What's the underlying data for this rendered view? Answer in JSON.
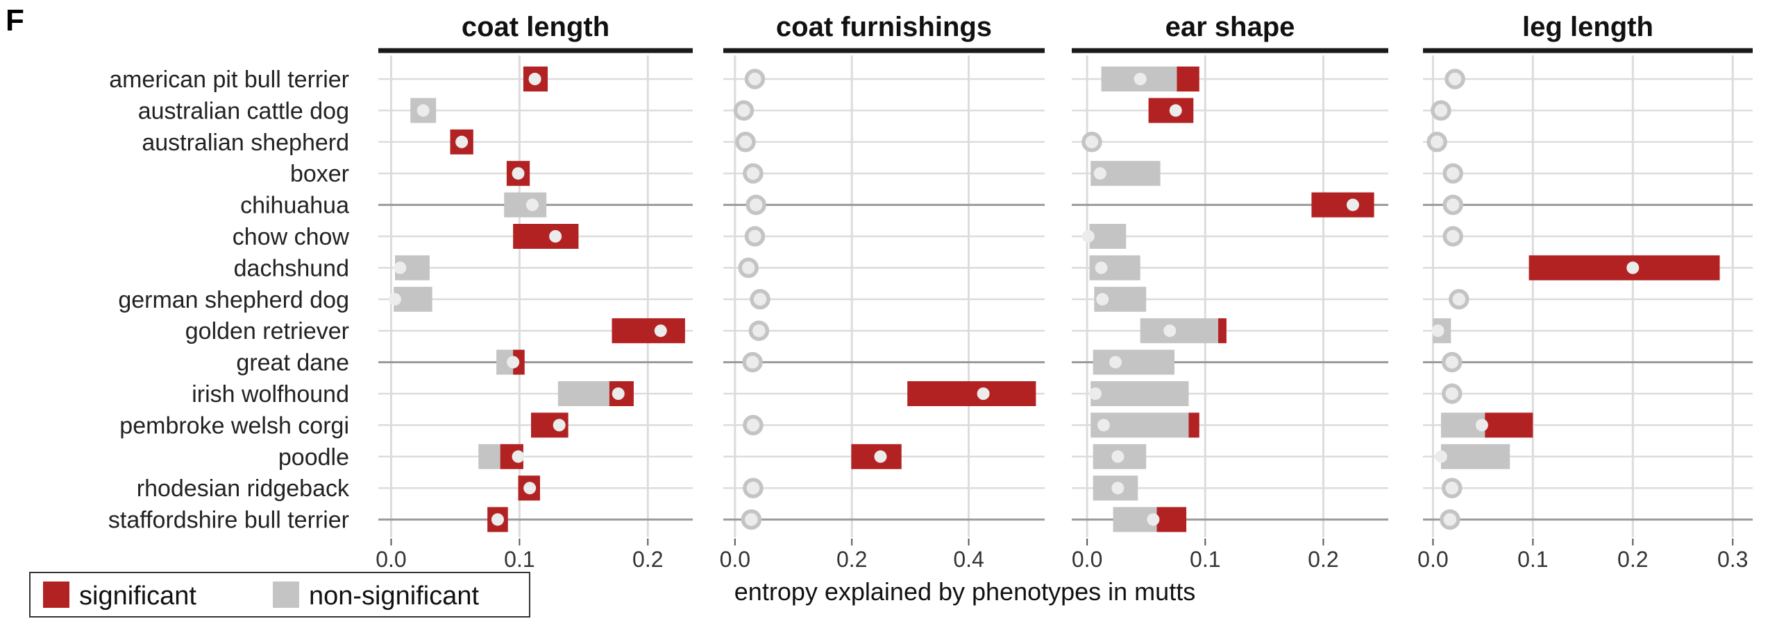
{
  "panel_label": "F",
  "colors": {
    "significant": "#b22222",
    "non_significant": "#c4c4c4",
    "point": "#ececec",
    "grid": "#dcdcdc",
    "refline": "#9a9a9a",
    "header": "#1a1a1a"
  },
  "legend": {
    "significant": "significant",
    "non_significant": "non-significant"
  },
  "chart_data": {
    "type": "interval",
    "xlabel": "entropy explained by phenotypes in mutts",
    "breeds": [
      "american pit bull terrier",
      "australian cattle dog",
      "australian shepherd",
      "boxer",
      "chihuahua",
      "chow chow",
      "dachshund",
      "german shepherd dog",
      "golden retriever",
      "great dane",
      "irish wolfhound",
      "pembroke welsh corgi",
      "poodle",
      "rhodesian ridgeback",
      "staffordshire bull terrier"
    ],
    "facets": [
      {
        "title": "coat length",
        "xlim": [
          -0.01,
          0.235
        ],
        "ticks": [
          0.0,
          0.1,
          0.2
        ],
        "tick_labels": [
          "0.0",
          "0.1",
          "0.2"
        ],
        "rows": [
          {
            "breed": "american pit bull terrier",
            "point": 0.112,
            "bars": [
              {
                "start": 0.103,
                "end": 0.122,
                "sig": true
              }
            ]
          },
          {
            "breed": "australian cattle dog",
            "point": 0.025,
            "bars": [
              {
                "start": 0.015,
                "end": 0.035,
                "sig": false
              }
            ]
          },
          {
            "breed": "australian shepherd",
            "point": 0.055,
            "bars": [
              {
                "start": 0.046,
                "end": 0.064,
                "sig": true
              }
            ]
          },
          {
            "breed": "boxer",
            "point": 0.099,
            "bars": [
              {
                "start": 0.09,
                "end": 0.108,
                "sig": true
              }
            ]
          },
          {
            "breed": "chihuahua",
            "point": 0.11,
            "bars": [
              {
                "start": 0.088,
                "end": 0.121,
                "sig": false
              }
            ]
          },
          {
            "breed": "chow chow",
            "point": 0.128,
            "bars": [
              {
                "start": 0.095,
                "end": 0.146,
                "sig": true
              }
            ]
          },
          {
            "breed": "dachshund",
            "point": 0.007,
            "bars": [
              {
                "start": 0.003,
                "end": 0.03,
                "sig": false
              }
            ]
          },
          {
            "breed": "german shepherd dog",
            "point": 0.003,
            "bars": [
              {
                "start": 0.002,
                "end": 0.032,
                "sig": false
              }
            ]
          },
          {
            "breed": "golden retriever",
            "point": 0.21,
            "bars": [
              {
                "start": 0.172,
                "end": 0.229,
                "sig": true
              }
            ]
          },
          {
            "breed": "great dane",
            "point": 0.095,
            "bars": [
              {
                "start": 0.082,
                "end": 0.095,
                "sig": false
              },
              {
                "start": 0.095,
                "end": 0.104,
                "sig": true
              }
            ]
          },
          {
            "breed": "irish wolfhound",
            "point": 0.177,
            "bars": [
              {
                "start": 0.13,
                "end": 0.17,
                "sig": false
              },
              {
                "start": 0.17,
                "end": 0.189,
                "sig": true
              }
            ]
          },
          {
            "breed": "pembroke welsh corgi",
            "point": 0.131,
            "bars": [
              {
                "start": 0.109,
                "end": 0.138,
                "sig": true
              }
            ]
          },
          {
            "breed": "poodle",
            "point": 0.099,
            "bars": [
              {
                "start": 0.068,
                "end": 0.085,
                "sig": false
              },
              {
                "start": 0.085,
                "end": 0.103,
                "sig": true
              }
            ]
          },
          {
            "breed": "rhodesian ridgeback",
            "point": 0.108,
            "bars": [
              {
                "start": 0.099,
                "end": 0.116,
                "sig": true
              }
            ]
          },
          {
            "breed": "staffordshire bull terrier",
            "point": 0.083,
            "bars": [
              {
                "start": 0.075,
                "end": 0.091,
                "sig": true
              }
            ]
          }
        ]
      },
      {
        "title": "coat furnishings",
        "xlim": [
          -0.02,
          0.53
        ],
        "ticks": [
          0.0,
          0.2,
          0.4
        ],
        "tick_labels": [
          "0.0",
          "0.2",
          "0.4"
        ],
        "rows": [
          {
            "breed": "american pit bull terrier",
            "point": 0.034,
            "bars": []
          },
          {
            "breed": "australian cattle dog",
            "point": 0.015,
            "bars": []
          },
          {
            "breed": "australian shepherd",
            "point": 0.018,
            "bars": []
          },
          {
            "breed": "boxer",
            "point": 0.031,
            "bars": []
          },
          {
            "breed": "chihuahua",
            "point": 0.036,
            "bars": []
          },
          {
            "breed": "chow chow",
            "point": 0.034,
            "bars": []
          },
          {
            "breed": "dachshund",
            "point": 0.023,
            "bars": []
          },
          {
            "breed": "german shepherd dog",
            "point": 0.043,
            "bars": []
          },
          {
            "breed": "golden retriever",
            "point": 0.041,
            "bars": []
          },
          {
            "breed": "great dane",
            "point": 0.03,
            "bars": []
          },
          {
            "breed": "irish wolfhound",
            "point": 0.425,
            "bars": [
              {
                "start": 0.295,
                "end": 0.515,
                "sig": true
              }
            ]
          },
          {
            "breed": "pembroke welsh corgi",
            "point": 0.031,
            "bars": []
          },
          {
            "breed": "poodle",
            "point": 0.249,
            "bars": [
              {
                "start": 0.199,
                "end": 0.285,
                "sig": true
              }
            ]
          },
          {
            "breed": "rhodesian ridgeback",
            "point": 0.031,
            "bars": []
          },
          {
            "breed": "staffordshire bull terrier",
            "point": 0.028,
            "bars": []
          }
        ]
      },
      {
        "title": "ear shape",
        "xlim": [
          -0.013,
          0.255
        ],
        "ticks": [
          0.0,
          0.1,
          0.2
        ],
        "tick_labels": [
          "0.0",
          "0.1",
          "0.2"
        ],
        "rows": [
          {
            "breed": "american pit bull terrier",
            "point": 0.045,
            "bars": [
              {
                "start": 0.012,
                "end": 0.076,
                "sig": false
              },
              {
                "start": 0.076,
                "end": 0.095,
                "sig": true
              }
            ]
          },
          {
            "breed": "australian cattle dog",
            "point": 0.075,
            "bars": [
              {
                "start": 0.052,
                "end": 0.09,
                "sig": true
              }
            ]
          },
          {
            "breed": "australian shepherd",
            "point": 0.004,
            "bars": []
          },
          {
            "breed": "boxer",
            "point": 0.011,
            "bars": [
              {
                "start": 0.003,
                "end": 0.062,
                "sig": false
              }
            ]
          },
          {
            "breed": "chihuahua",
            "point": 0.225,
            "bars": [
              {
                "start": 0.19,
                "end": 0.243,
                "sig": true
              }
            ]
          },
          {
            "breed": "chow chow",
            "point": 0.001,
            "bars": [
              {
                "start": 0.002,
                "end": 0.033,
                "sig": false
              }
            ]
          },
          {
            "breed": "dachshund",
            "point": 0.012,
            "bars": [
              {
                "start": 0.002,
                "end": 0.045,
                "sig": false
              }
            ]
          },
          {
            "breed": "german shepherd dog",
            "point": 0.013,
            "bars": [
              {
                "start": 0.006,
                "end": 0.05,
                "sig": false
              }
            ]
          },
          {
            "breed": "golden retriever",
            "point": 0.07,
            "bars": [
              {
                "start": 0.045,
                "end": 0.111,
                "sig": false
              },
              {
                "start": 0.111,
                "end": 0.118,
                "sig": true
              }
            ]
          },
          {
            "breed": "great dane",
            "point": 0.024,
            "bars": [
              {
                "start": 0.005,
                "end": 0.074,
                "sig": false
              }
            ]
          },
          {
            "breed": "irish wolfhound",
            "point": 0.007,
            "bars": [
              {
                "start": 0.003,
                "end": 0.086,
                "sig": false
              }
            ]
          },
          {
            "breed": "pembroke welsh corgi",
            "point": 0.014,
            "bars": [
              {
                "start": 0.003,
                "end": 0.086,
                "sig": false
              },
              {
                "start": 0.086,
                "end": 0.095,
                "sig": true
              }
            ]
          },
          {
            "breed": "poodle",
            "point": 0.026,
            "bars": [
              {
                "start": 0.005,
                "end": 0.05,
                "sig": false
              }
            ]
          },
          {
            "breed": "rhodesian ridgeback",
            "point": 0.026,
            "bars": [
              {
                "start": 0.005,
                "end": 0.043,
                "sig": false
              }
            ]
          },
          {
            "breed": "staffordshire bull terrier",
            "point": 0.056,
            "bars": [
              {
                "start": 0.022,
                "end": 0.059,
                "sig": false
              },
              {
                "start": 0.059,
                "end": 0.084,
                "sig": true
              }
            ]
          }
        ]
      },
      {
        "title": "leg length",
        "xlim": [
          -0.01,
          0.32
        ],
        "ticks": [
          0.0,
          0.1,
          0.2,
          0.3
        ],
        "tick_labels": [
          "0.0",
          "0.1",
          "0.2",
          "0.3"
        ],
        "rows": [
          {
            "breed": "american pit bull terrier",
            "point": 0.022,
            "bars": []
          },
          {
            "breed": "australian cattle dog",
            "point": 0.008,
            "bars": []
          },
          {
            "breed": "australian shepherd",
            "point": 0.004,
            "bars": []
          },
          {
            "breed": "boxer",
            "point": 0.02,
            "bars": []
          },
          {
            "breed": "chihuahua",
            "point": 0.02,
            "bars": []
          },
          {
            "breed": "chow chow",
            "point": 0.02,
            "bars": []
          },
          {
            "breed": "dachshund",
            "point": 0.2,
            "bars": [
              {
                "start": 0.096,
                "end": 0.287,
                "sig": true
              }
            ]
          },
          {
            "breed": "german shepherd dog",
            "point": 0.026,
            "bars": []
          },
          {
            "breed": "golden retriever",
            "point": 0.005,
            "bars": [
              {
                "start": 0.0,
                "end": 0.018,
                "sig": false
              }
            ]
          },
          {
            "breed": "great dane",
            "point": 0.019,
            "bars": []
          },
          {
            "breed": "irish wolfhound",
            "point": 0.019,
            "bars": []
          },
          {
            "breed": "pembroke welsh corgi",
            "point": 0.049,
            "bars": [
              {
                "start": 0.008,
                "end": 0.052,
                "sig": false
              },
              {
                "start": 0.052,
                "end": 0.1,
                "sig": true
              }
            ]
          },
          {
            "breed": "poodle",
            "point": 0.008,
            "bars": [
              {
                "start": 0.008,
                "end": 0.077,
                "sig": false
              }
            ]
          },
          {
            "breed": "rhodesian ridgeback",
            "point": 0.019,
            "bars": []
          },
          {
            "breed": "staffordshire bull terrier",
            "point": 0.017,
            "bars": []
          }
        ]
      }
    ]
  }
}
